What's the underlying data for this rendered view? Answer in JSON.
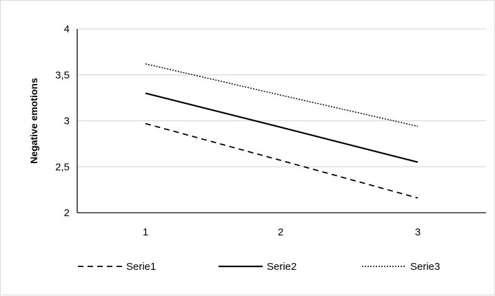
{
  "chart_data": {
    "type": "line",
    "title": "",
    "xlabel": "",
    "ylabel": "Negative emotions",
    "x": [
      "1",
      "2",
      "3"
    ],
    "ylim": [
      2,
      4
    ],
    "yticks": [
      "2",
      "2,5",
      "3",
      "3,5",
      "4"
    ],
    "ytick_values": [
      2,
      2.5,
      3,
      3.5,
      4
    ],
    "grid": true,
    "legend_position": "bottom",
    "series": [
      {
        "name": "Serie1",
        "values": [
          2.97,
          2.57,
          2.16
        ],
        "dash": "dashed",
        "color": "#000000"
      },
      {
        "name": "Serie2",
        "values": [
          3.3,
          2.93,
          2.55
        ],
        "dash": "solid",
        "color": "#000000"
      },
      {
        "name": "Serie3",
        "values": [
          3.62,
          3.28,
          2.94
        ],
        "dash": "dotted",
        "color": "#000000"
      }
    ]
  }
}
